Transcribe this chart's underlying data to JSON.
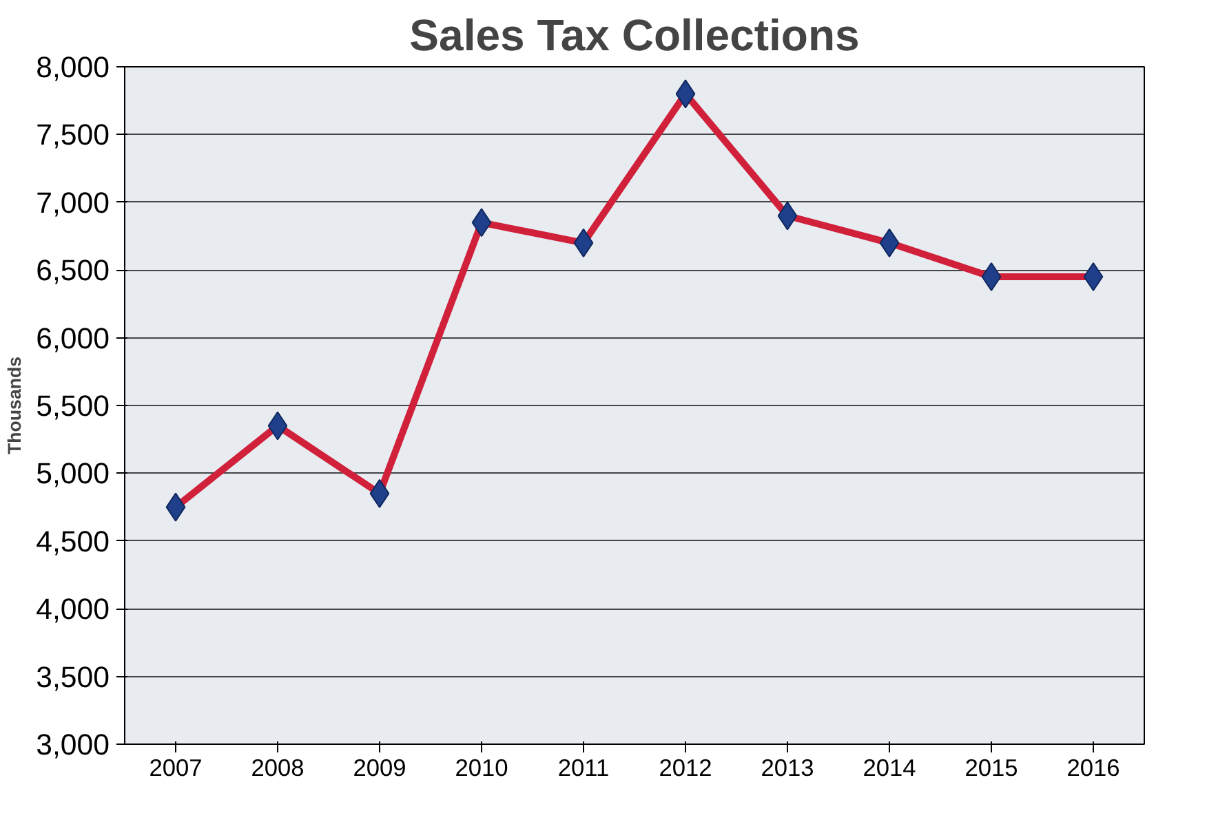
{
  "chart_data": {
    "type": "line",
    "title": "Sales Tax Collections",
    "ylabel": "Thousands",
    "categories": [
      "2007",
      "2008",
      "2009",
      "2010",
      "2011",
      "2012",
      "2013",
      "2014",
      "2015",
      "2016"
    ],
    "series": [
      {
        "color": "#d0203a",
        "values": [
          4750,
          5350,
          4850,
          6850,
          6700,
          7800,
          6900,
          6700,
          6450,
          6450
        ]
      }
    ],
    "ylim": [
      3000,
      8000
    ],
    "yticks": [
      {
        "value": 3000,
        "label": "3,000"
      },
      {
        "value": 3500,
        "label": "3,500"
      },
      {
        "value": 4000,
        "label": "4,000"
      },
      {
        "value": 4500,
        "label": "4,500"
      },
      {
        "value": 5000,
        "label": "5,000"
      },
      {
        "value": 5500,
        "label": "5,500"
      },
      {
        "value": 6000,
        "label": "6,000"
      },
      {
        "value": 6500,
        "label": "6,500"
      },
      {
        "value": 7000,
        "label": "7,000"
      },
      {
        "value": 7500,
        "label": "7,500"
      },
      {
        "value": 8000,
        "label": "8,000"
      }
    ],
    "grid": "y",
    "marker": "diamond",
    "line_style": "solid"
  }
}
